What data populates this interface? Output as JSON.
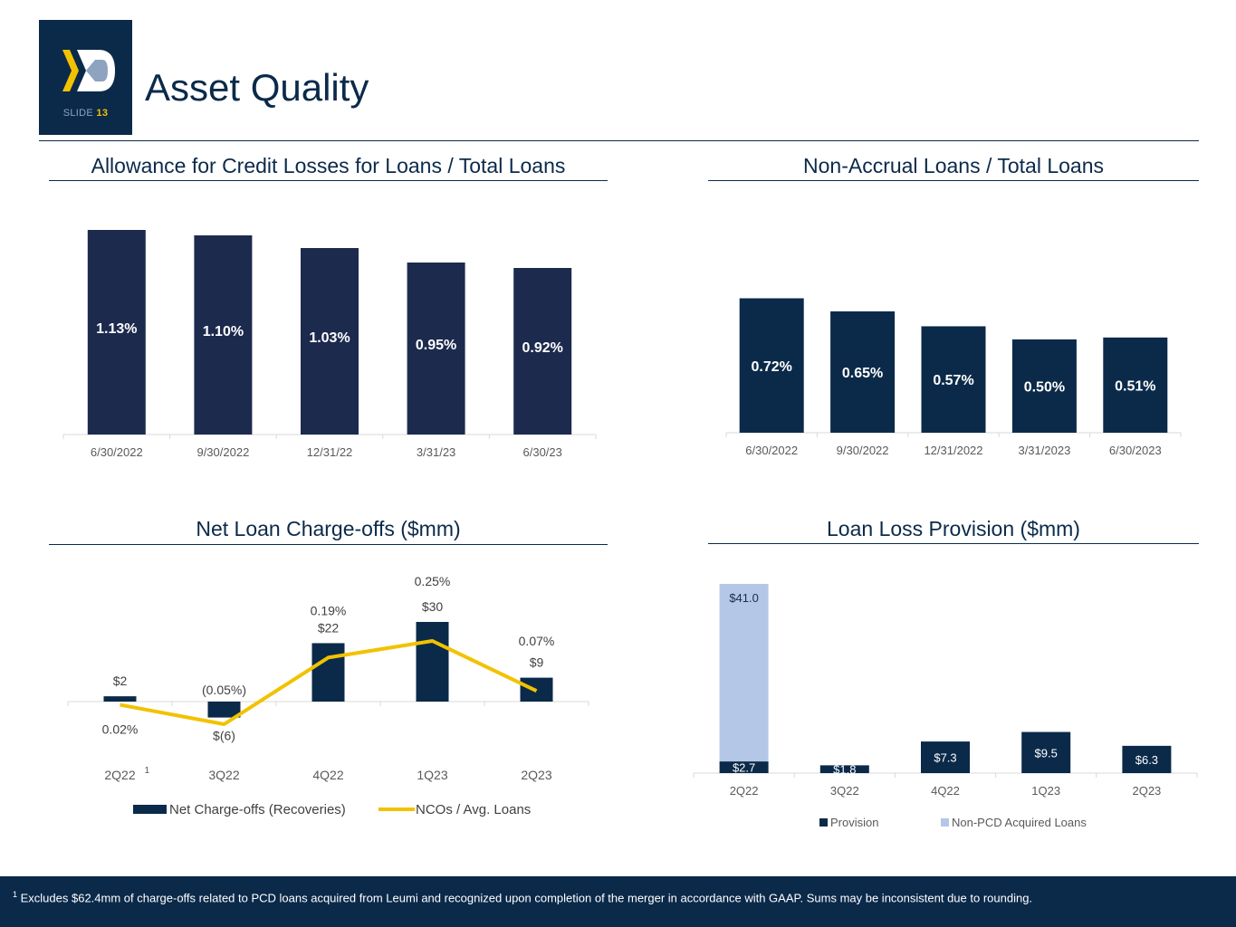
{
  "header": {
    "slide_label": "SLIDE",
    "slide_number": "13",
    "title": "Asset Quality"
  },
  "colors": {
    "navy": "#1c2a4e",
    "dark_navy": "#0b2a4a",
    "gold": "#f2c200",
    "light_blue": "#b4c7e7",
    "axis": "#d9d9d9",
    "tick_text": "#595959"
  },
  "chart_data": [
    {
      "id": "acl",
      "type": "bar",
      "title": "Allowance for Credit Losses for Loans / Total Loans",
      "categories": [
        "6/30/2022",
        "9/30/2022",
        "12/31/22",
        "3/31/23",
        "6/30/23"
      ],
      "values": [
        1.13,
        1.1,
        1.03,
        0.95,
        0.92
      ],
      "labels": [
        "1.13%",
        "1.10%",
        "1.03%",
        "0.95%",
        "0.92%"
      ],
      "unit": "%",
      "ylim": [
        0,
        1.2
      ]
    },
    {
      "id": "nonaccrual",
      "type": "bar",
      "title": "Non-Accrual Loans / Total Loans",
      "categories": [
        "6/30/2022",
        "9/30/2022",
        "12/31/2022",
        "3/31/2023",
        "6/30/2023"
      ],
      "values": [
        0.72,
        0.65,
        0.57,
        0.5,
        0.51
      ],
      "labels": [
        "0.72%",
        "0.65%",
        "0.57%",
        "0.50%",
        "0.51%"
      ],
      "unit": "%",
      "ylim": [
        0,
        0.8
      ]
    },
    {
      "id": "nco",
      "type": "bar+line",
      "title": "Net Loan Charge-offs ($mm)",
      "categories": [
        "2Q22",
        "3Q22",
        "4Q22",
        "1Q23",
        "2Q23"
      ],
      "footnote_marker": "1",
      "series": [
        {
          "name": "Net Charge-offs (Recoveries)",
          "values": [
            2,
            -6,
            22,
            30,
            9
          ],
          "labels": [
            "$2",
            "$(6)",
            "$22",
            "$30",
            "$9"
          ]
        },
        {
          "name": "NCOs / Avg. Loans",
          "values": [
            0.02,
            -0.05,
            0.19,
            0.25,
            0.07
          ],
          "labels": [
            "0.02%",
            "(0.05%)",
            "0.19%",
            "0.25%",
            "0.07%"
          ]
        }
      ],
      "bar_ylim": [
        -10,
        32
      ],
      "line_ylim": [
        -0.1,
        0.3
      ]
    },
    {
      "id": "provision",
      "type": "stacked-bar",
      "title": "Loan Loss Provision ($mm)",
      "categories": [
        "2Q22",
        "3Q22",
        "4Q22",
        "1Q23",
        "2Q23"
      ],
      "series": [
        {
          "name": "Provision",
          "values": [
            2.7,
            1.8,
            7.3,
            9.5,
            6.3
          ],
          "labels": [
            "$2.7",
            "$1.8",
            "$7.3",
            "$9.5",
            "$6.3"
          ]
        },
        {
          "name": "Non-PCD Acquired Loans",
          "values": [
            41.0,
            0,
            0,
            0,
            0
          ],
          "labels": [
            "$41.0",
            "",
            "",
            "",
            ""
          ]
        }
      ],
      "ylim": [
        0,
        45
      ]
    }
  ],
  "footer": {
    "marker": "1",
    "text": " Excludes $62.4mm of charge-offs related to PCD loans acquired from Leumi and recognized upon completion of the merger in accordance with GAAP.  Sums may be inconsistent due to rounding."
  }
}
